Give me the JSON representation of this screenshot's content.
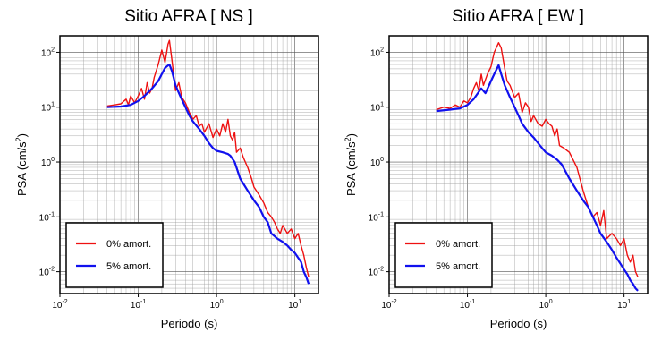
{
  "chart_data": [
    {
      "type": "line",
      "title": "Sitio AFRA [ NS ]",
      "xlabel": "Periodo (s)",
      "ylabel": "PSA (cm/s",
      "ylabel_sup": "2",
      "ylabel_close": ")",
      "xscale": "log",
      "yscale": "log",
      "xlim": [
        0.01,
        20
      ],
      "ylim": [
        0.004,
        200
      ],
      "grid": true,
      "legend_position": "bottom-left",
      "x_ticks": [
        {
          "base": "10",
          "exp": "-2"
        },
        {
          "base": "10",
          "exp": "-1"
        },
        {
          "base": "10",
          "exp": "0"
        },
        {
          "base": "10",
          "exp": "1"
        }
      ],
      "y_ticks": [
        {
          "base": "10",
          "exp": "-2"
        },
        {
          "base": "10",
          "exp": "-1"
        },
        {
          "base": "10",
          "exp": "0"
        },
        {
          "base": "10",
          "exp": "1"
        },
        {
          "base": "10",
          "exp": "2"
        }
      ],
      "series": [
        {
          "name": "0% amort.",
          "color": "#ee1111",
          "points": [
            [
              0.04,
              10.5
            ],
            [
              0.05,
              11
            ],
            [
              0.06,
              11.5
            ],
            [
              0.07,
              14
            ],
            [
              0.075,
              11
            ],
            [
              0.08,
              16
            ],
            [
              0.09,
              12
            ],
            [
              0.1,
              16
            ],
            [
              0.11,
              22
            ],
            [
              0.12,
              14
            ],
            [
              0.13,
              28
            ],
            [
              0.14,
              18
            ],
            [
              0.15,
              22
            ],
            [
              0.16,
              35
            ],
            [
              0.18,
              60
            ],
            [
              0.2,
              110
            ],
            [
              0.22,
              65
            ],
            [
              0.24,
              140
            ],
            [
              0.25,
              165
            ],
            [
              0.27,
              70
            ],
            [
              0.3,
              20
            ],
            [
              0.33,
              28
            ],
            [
              0.36,
              15
            ],
            [
              0.4,
              12
            ],
            [
              0.45,
              8
            ],
            [
              0.5,
              6
            ],
            [
              0.55,
              7
            ],
            [
              0.6,
              4.5
            ],
            [
              0.65,
              5
            ],
            [
              0.7,
              3.5
            ],
            [
              0.8,
              5
            ],
            [
              0.9,
              2.8
            ],
            [
              1.0,
              4
            ],
            [
              1.1,
              3
            ],
            [
              1.2,
              5
            ],
            [
              1.3,
              3.5
            ],
            [
              1.4,
              6
            ],
            [
              1.5,
              3
            ],
            [
              1.6,
              2.5
            ],
            [
              1.7,
              3.5
            ],
            [
              1.8,
              1.5
            ],
            [
              2.0,
              1.8
            ],
            [
              2.2,
              1.2
            ],
            [
              2.5,
              0.8
            ],
            [
              2.8,
              0.5
            ],
            [
              3.0,
              0.35
            ],
            [
              3.5,
              0.25
            ],
            [
              4.0,
              0.18
            ],
            [
              4.5,
              0.12
            ],
            [
              5.0,
              0.1
            ],
            [
              5.5,
              0.08
            ],
            [
              6.0,
              0.06
            ],
            [
              6.5,
              0.05
            ],
            [
              7.0,
              0.07
            ],
            [
              8.0,
              0.05
            ],
            [
              9.0,
              0.06
            ],
            [
              10,
              0.04
            ],
            [
              11,
              0.05
            ],
            [
              12,
              0.03
            ],
            [
              13,
              0.02
            ],
            [
              14,
              0.012
            ],
            [
              15,
              0.008
            ]
          ]
        },
        {
          "name": "5% amort.",
          "color": "#1111ee",
          "points": [
            [
              0.04,
              10
            ],
            [
              0.06,
              10.3
            ],
            [
              0.08,
              11
            ],
            [
              0.1,
              13
            ],
            [
              0.12,
              16
            ],
            [
              0.15,
              22
            ],
            [
              0.18,
              30
            ],
            [
              0.2,
              40
            ],
            [
              0.22,
              52
            ],
            [
              0.25,
              60
            ],
            [
              0.27,
              45
            ],
            [
              0.3,
              25
            ],
            [
              0.35,
              15
            ],
            [
              0.4,
              10
            ],
            [
              0.45,
              7
            ],
            [
              0.5,
              5.5
            ],
            [
              0.6,
              4
            ],
            [
              0.7,
              3
            ],
            [
              0.8,
              2.2
            ],
            [
              0.9,
              1.8
            ],
            [
              1.0,
              1.6
            ],
            [
              1.2,
              1.5
            ],
            [
              1.4,
              1.4
            ],
            [
              1.5,
              1.3
            ],
            [
              1.7,
              1.0
            ],
            [
              2.0,
              0.5
            ],
            [
              2.5,
              0.3
            ],
            [
              3.0,
              0.2
            ],
            [
              3.5,
              0.15
            ],
            [
              4.0,
              0.1
            ],
            [
              4.5,
              0.08
            ],
            [
              5.0,
              0.05
            ],
            [
              6.0,
              0.04
            ],
            [
              7.0,
              0.035
            ],
            [
              8.0,
              0.03
            ],
            [
              9.0,
              0.025
            ],
            [
              10,
              0.022
            ],
            [
              11,
              0.018
            ],
            [
              12,
              0.015
            ],
            [
              13,
              0.01
            ],
            [
              14,
              0.008
            ],
            [
              15,
              0.006
            ]
          ]
        }
      ]
    },
    {
      "type": "line",
      "title": "Sitio AFRA [ EW ]",
      "xlabel": "Periodo (s)",
      "ylabel": "PSA (cm/s",
      "ylabel_sup": "2",
      "ylabel_close": ")",
      "xscale": "log",
      "yscale": "log",
      "xlim": [
        0.01,
        20
      ],
      "ylim": [
        0.004,
        200
      ],
      "grid": true,
      "legend_position": "bottom-left",
      "x_ticks": [
        {
          "base": "10",
          "exp": "-2"
        },
        {
          "base": "10",
          "exp": "-1"
        },
        {
          "base": "10",
          "exp": "0"
        },
        {
          "base": "10",
          "exp": "1"
        }
      ],
      "y_ticks": [
        {
          "base": "10",
          "exp": "-2"
        },
        {
          "base": "10",
          "exp": "-1"
        },
        {
          "base": "10",
          "exp": "0"
        },
        {
          "base": "10",
          "exp": "1"
        },
        {
          "base": "10",
          "exp": "2"
        }
      ],
      "series": [
        {
          "name": "0% amort.",
          "color": "#ee1111",
          "points": [
            [
              0.04,
              9
            ],
            [
              0.05,
              10
            ],
            [
              0.06,
              9.5
            ],
            [
              0.07,
              11
            ],
            [
              0.08,
              10
            ],
            [
              0.09,
              13
            ],
            [
              0.1,
              12
            ],
            [
              0.11,
              15
            ],
            [
              0.12,
              22
            ],
            [
              0.13,
              28
            ],
            [
              0.14,
              20
            ],
            [
              0.15,
              40
            ],
            [
              0.16,
              25
            ],
            [
              0.18,
              40
            ],
            [
              0.2,
              55
            ],
            [
              0.22,
              100
            ],
            [
              0.25,
              150
            ],
            [
              0.27,
              120
            ],
            [
              0.3,
              50
            ],
            [
              0.32,
              30
            ],
            [
              0.35,
              25
            ],
            [
              0.4,
              15
            ],
            [
              0.45,
              18
            ],
            [
              0.5,
              8
            ],
            [
              0.55,
              12
            ],
            [
              0.6,
              10
            ],
            [
              0.65,
              5.5
            ],
            [
              0.7,
              7
            ],
            [
              0.8,
              5
            ],
            [
              0.9,
              4.5
            ],
            [
              1.0,
              6
            ],
            [
              1.1,
              5
            ],
            [
              1.2,
              4.5
            ],
            [
              1.3,
              3
            ],
            [
              1.4,
              4
            ],
            [
              1.5,
              2
            ],
            [
              1.7,
              1.8
            ],
            [
              2.0,
              1.5
            ],
            [
              2.5,
              0.8
            ],
            [
              3.0,
              0.3
            ],
            [
              3.5,
              0.15
            ],
            [
              4.0,
              0.1
            ],
            [
              4.5,
              0.12
            ],
            [
              5.0,
              0.07
            ],
            [
              5.5,
              0.13
            ],
            [
              6.0,
              0.04
            ],
            [
              7.0,
              0.05
            ],
            [
              8.0,
              0.04
            ],
            [
              9.0,
              0.03
            ],
            [
              10,
              0.04
            ],
            [
              11,
              0.02
            ],
            [
              12,
              0.015
            ],
            [
              13,
              0.02
            ],
            [
              14,
              0.01
            ],
            [
              15,
              0.008
            ]
          ]
        },
        {
          "name": "5% amort.",
          "color": "#1111ee",
          "points": [
            [
              0.04,
              8.5
            ],
            [
              0.06,
              9
            ],
            [
              0.08,
              9.5
            ],
            [
              0.1,
              11
            ],
            [
              0.12,
              14
            ],
            [
              0.15,
              22
            ],
            [
              0.17,
              18
            ],
            [
              0.2,
              30
            ],
            [
              0.22,
              40
            ],
            [
              0.25,
              58
            ],
            [
              0.27,
              40
            ],
            [
              0.3,
              25
            ],
            [
              0.35,
              15
            ],
            [
              0.4,
              10
            ],
            [
              0.45,
              7
            ],
            [
              0.5,
              5
            ],
            [
              0.6,
              3.5
            ],
            [
              0.7,
              2.8
            ],
            [
              0.8,
              2.2
            ],
            [
              0.9,
              1.8
            ],
            [
              1.0,
              1.5
            ],
            [
              1.2,
              1.3
            ],
            [
              1.4,
              1.1
            ],
            [
              1.6,
              0.9
            ],
            [
              2.0,
              0.5
            ],
            [
              2.5,
              0.3
            ],
            [
              3.0,
              0.2
            ],
            [
              3.5,
              0.15
            ],
            [
              4.0,
              0.1
            ],
            [
              4.5,
              0.07
            ],
            [
              5.0,
              0.05
            ],
            [
              6.0,
              0.035
            ],
            [
              7.0,
              0.025
            ],
            [
              8.0,
              0.018
            ],
            [
              9.0,
              0.014
            ],
            [
              10,
              0.011
            ],
            [
              11,
              0.009
            ],
            [
              12,
              0.007
            ],
            [
              13,
              0.006
            ],
            [
              14,
              0.005
            ],
            [
              15,
              0.0045
            ]
          ]
        }
      ]
    }
  ]
}
